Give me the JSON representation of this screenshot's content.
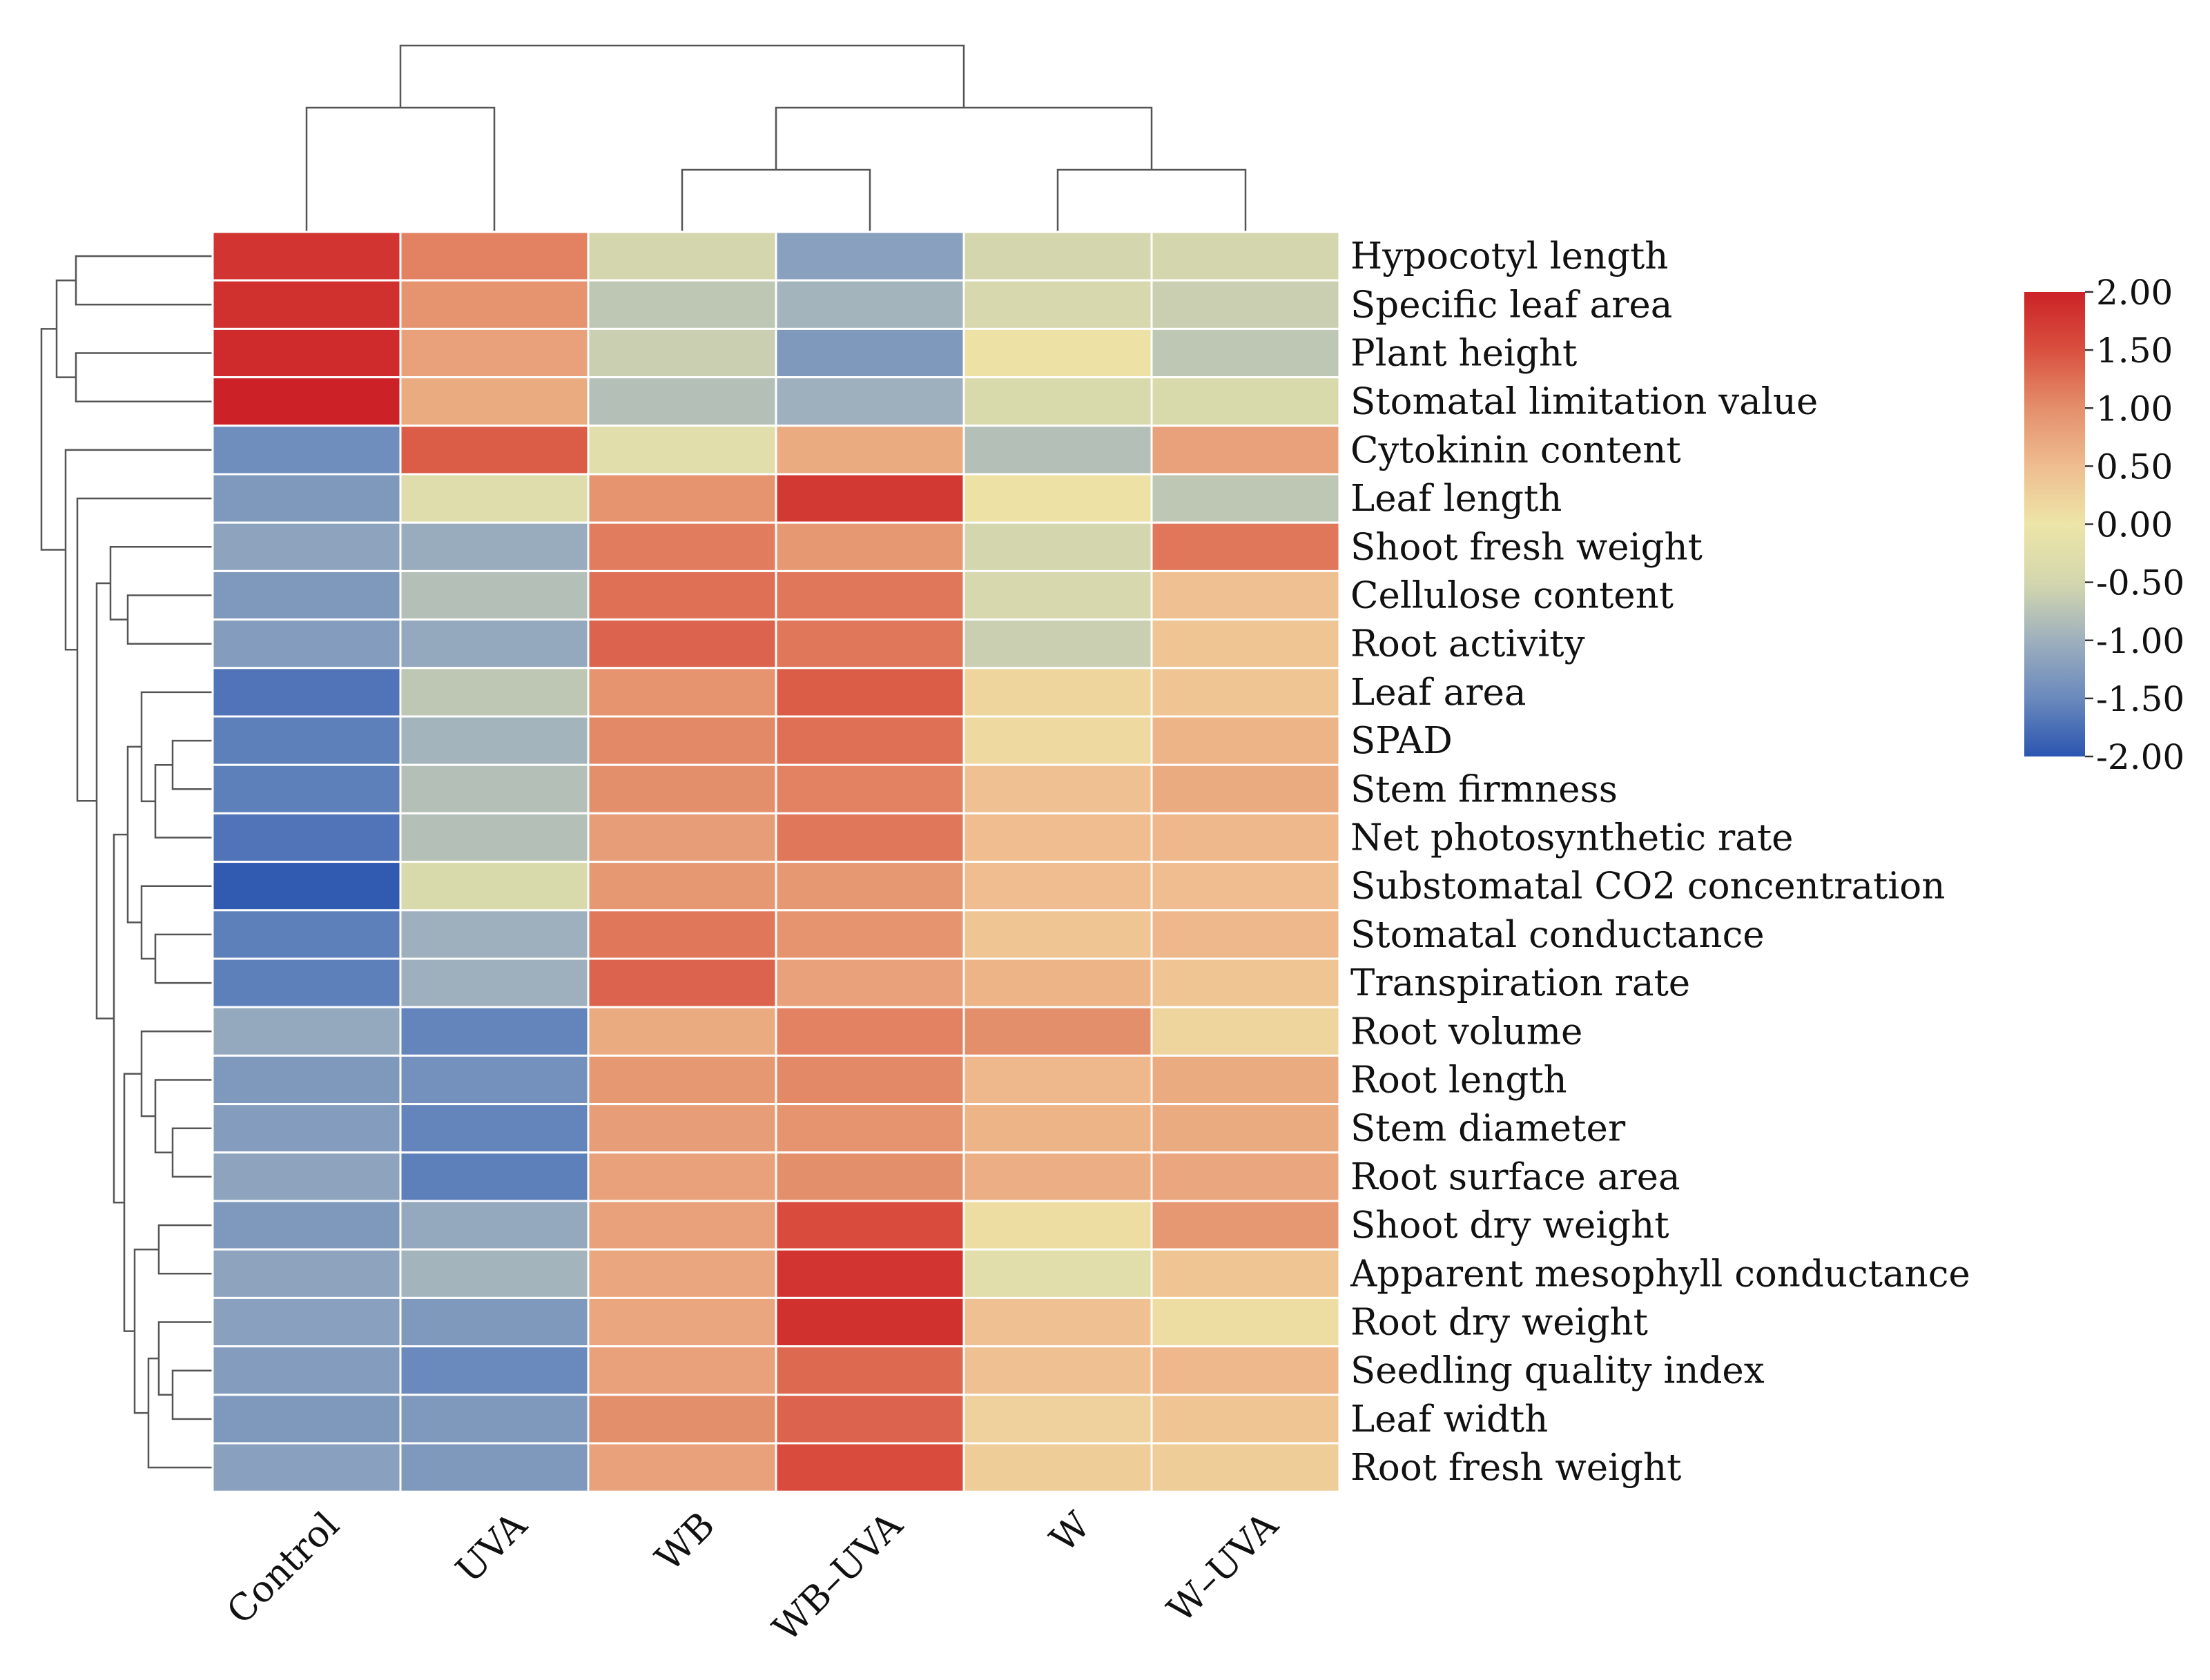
{
  "chart_data": {
    "type": "heatmap",
    "title": "",
    "columns": [
      "Control",
      "UVA",
      "WB",
      "WB–UVA",
      "W",
      "W–UVA"
    ],
    "rows": [
      "Hypocotyl length",
      "Specific leaf area",
      "Plant height",
      "Stomatal limitation value",
      "Cytokinin content",
      "Leaf length",
      "Shoot fresh weight",
      "Cellulose content",
      "Root activity",
      "Leaf area",
      "SPAD",
      "Stem firmness",
      "Net photosynthetic rate",
      "Substomatal CO2 concentration",
      "Stomatal conductance",
      "Transpiration rate",
      "Root volume",
      "Root length",
      "Stem diameter",
      "Root surface area",
      "Shoot dry weight",
      "Apparent mesophyll conductance",
      "Root dry weight",
      "Seedling quality index",
      "Leaf width",
      "Root fresh weight"
    ],
    "values": [
      [
        1.8,
        1.1,
        -0.5,
        -1.2,
        -0.5,
        -0.5
      ],
      [
        1.85,
        0.95,
        -0.7,
        -0.95,
        -0.45,
        -0.6
      ],
      [
        1.9,
        0.8,
        -0.6,
        -1.3,
        0.05,
        -0.7
      ],
      [
        2.0,
        0.7,
        -0.8,
        -1.0,
        -0.4,
        -0.4
      ],
      [
        -1.45,
        1.4,
        -0.25,
        0.7,
        -0.8,
        0.8
      ],
      [
        -1.3,
        -0.3,
        0.95,
        1.75,
        0.05,
        -0.7
      ],
      [
        -1.15,
        -1.05,
        1.15,
        0.9,
        -0.5,
        1.2
      ],
      [
        -1.3,
        -0.8,
        1.25,
        1.2,
        -0.45,
        0.45
      ],
      [
        -1.25,
        -1.1,
        1.35,
        1.2,
        -0.6,
        0.4
      ],
      [
        -1.7,
        -0.7,
        0.95,
        1.4,
        0.2,
        0.4
      ],
      [
        -1.6,
        -0.95,
        1.05,
        1.25,
        0.15,
        0.6
      ],
      [
        -1.6,
        -0.8,
        1.0,
        1.1,
        0.45,
        0.7
      ],
      [
        -1.7,
        -0.8,
        0.85,
        1.2,
        0.5,
        0.55
      ],
      [
        -1.95,
        -0.4,
        0.9,
        0.9,
        0.5,
        0.5
      ],
      [
        -1.6,
        -1.0,
        1.2,
        0.95,
        0.4,
        0.55
      ],
      [
        -1.6,
        -1.0,
        1.35,
        0.8,
        0.6,
        0.4
      ],
      [
        -1.1,
        -1.55,
        0.7,
        1.1,
        1.0,
        0.2
      ],
      [
        -1.3,
        -1.4,
        0.9,
        1.05,
        0.55,
        0.7
      ],
      [
        -1.25,
        -1.55,
        0.85,
        0.95,
        0.6,
        0.7
      ],
      [
        -1.15,
        -1.6,
        0.8,
        1.0,
        0.65,
        0.75
      ],
      [
        -1.3,
        -1.1,
        0.8,
        1.55,
        0.1,
        0.9
      ],
      [
        -1.15,
        -0.95,
        0.75,
        1.8,
        -0.25,
        0.4
      ],
      [
        -1.2,
        -1.3,
        0.75,
        1.85,
        0.45,
        0.1
      ],
      [
        -1.25,
        -1.5,
        0.8,
        1.3,
        0.45,
        0.55
      ],
      [
        -1.3,
        -1.3,
        1.0,
        1.35,
        0.25,
        0.4
      ],
      [
        -1.2,
        -1.3,
        0.8,
        1.55,
        0.3,
        0.3
      ]
    ],
    "colorbar": {
      "min": -2.0,
      "max": 2.0,
      "ticks": [
        "2.00",
        "1.50",
        "1.00",
        "0.50",
        "0.00",
        "-0.50",
        "-1.00",
        "-1.50",
        "-2.00"
      ],
      "colors": [
        "#2b55b0",
        "#6a89bd",
        "#9eb0be",
        "#d4d7ad",
        "#ede5a8",
        "#efbd8f",
        "#e48f6c",
        "#d9503f",
        "#cc2227"
      ]
    },
    "column_dendrogram": true,
    "row_dendrogram": true
  }
}
